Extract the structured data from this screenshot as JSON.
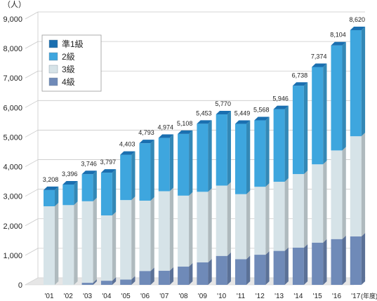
{
  "chart_data": {
    "type": "bar",
    "stacked": true,
    "unit_label": "（人）",
    "xunit_label": "(年度)",
    "categories": [
      "'01",
      "'02",
      "'03",
      "'04",
      "'05",
      "'06",
      "'07",
      "'08",
      "'09",
      "'10",
      "'11",
      "'12",
      "'13",
      "'14",
      "'15",
      "'16",
      "'17"
    ],
    "totals": [
      3208,
      3396,
      3746,
      3797,
      4403,
      4793,
      4974,
      5108,
      5453,
      5770,
      5449,
      5568,
      5946,
      6738,
      7374,
      8104,
      8620
    ],
    "total_labels": [
      "3,208",
      "3,396",
      "3,746",
      "3,797",
      "4,403",
      "4,793",
      "4,974",
      "5,108",
      "5,453",
      "5,770",
      "5,449",
      "5,568",
      "5,946",
      "6,738",
      "7,374",
      "8,104",
      "8,620"
    ],
    "series": [
      {
        "name": "4級",
        "color": "#6f8ab8",
        "values": [
          0,
          0,
          70,
          140,
          180,
          470,
          480,
          620,
          760,
          980,
          870,
          1020,
          1150,
          1260,
          1430,
          1550,
          1640
        ]
      },
      {
        "name": "3級",
        "color": "#d6e3e8",
        "values": [
          2660,
          2700,
          2760,
          2210,
          2690,
          2380,
          2690,
          2400,
          2390,
          2380,
          2200,
          2300,
          2340,
          2490,
          2650,
          3000,
          3390
        ]
      },
      {
        "name": "2級",
        "color": "#3ea6de",
        "values": [
          548,
          696,
          916,
          1447,
          1533,
          1943,
          1804,
          2088,
          2303,
          2410,
          2379,
          2248,
          2456,
          2988,
          3294,
          3554,
          3590
        ]
      },
      {
        "name": "準1級",
        "color": "#1a6fb0",
        "values": [
          0,
          0,
          0,
          0,
          0,
          0,
          0,
          0,
          0,
          0,
          0,
          0,
          0,
          0,
          0,
          0,
          0
        ]
      }
    ],
    "legend_order": [
      "準1級",
      "2級",
      "3級",
      "4級"
    ],
    "legend_placement": "top-left",
    "ylim": [
      0,
      9000
    ],
    "yticks": [
      0,
      1000,
      2000,
      3000,
      4000,
      5000,
      6000,
      7000,
      8000,
      9000
    ],
    "ytick_labels": [
      "0",
      "1,000",
      "2,000",
      "3,000",
      "4,000",
      "5,000",
      "6,000",
      "7,000",
      "8,000",
      "9,000"
    ],
    "grid": true
  }
}
